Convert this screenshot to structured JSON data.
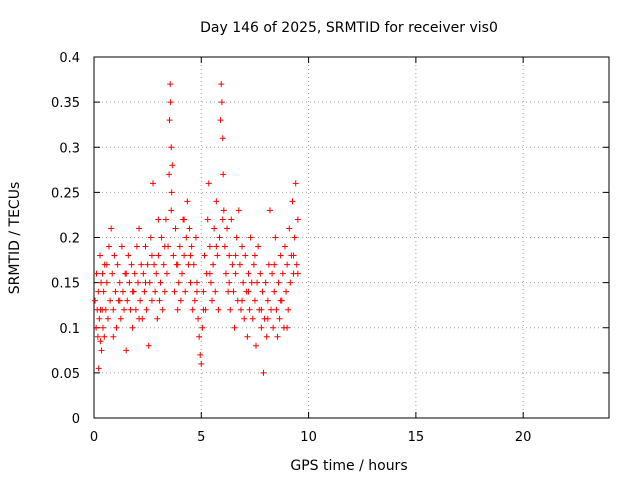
{
  "chart_data": {
    "type": "scatter",
    "title": "Day 146 of 2025, SRMTID for receiver vis0",
    "xlabel": "GPS time / hours",
    "ylabel": "SRMTID / TECUs",
    "xlim": [
      0,
      24
    ],
    "ylim": [
      0,
      0.4
    ],
    "x_ticks": [
      0,
      5,
      10,
      15,
      20
    ],
    "y_ticks": [
      0,
      0.05,
      0.1,
      0.15,
      0.2,
      0.25,
      0.3,
      0.35,
      0.4
    ],
    "x_tick_labels": [
      "0",
      "5",
      "10",
      "15",
      "20"
    ],
    "y_tick_labels": [
      "0",
      "0.05",
      "0.1",
      "0.15",
      "0.2",
      "0.25",
      "0.3",
      "0.35",
      "0.4"
    ],
    "grid": true,
    "marker": "plus",
    "series": [
      {
        "color": "#ff0000",
        "points": [
          [
            0.05,
            0.13
          ],
          [
            0.1,
            0.1
          ],
          [
            0.12,
            0.16
          ],
          [
            0.15,
            0.12
          ],
          [
            0.18,
            0.09
          ],
          [
            0.2,
            0.14
          ],
          [
            0.22,
            0.055
          ],
          [
            0.25,
            0.11
          ],
          [
            0.28,
            0.18
          ],
          [
            0.3,
            0.085
          ],
          [
            0.33,
            0.15
          ],
          [
            0.35,
            0.075
          ],
          [
            0.38,
            0.12
          ],
          [
            0.4,
            0.16
          ],
          [
            0.42,
            0.1
          ],
          [
            0.45,
            0.14
          ],
          [
            0.48,
            0.09
          ],
          [
            0.5,
            0.17
          ],
          [
            0.55,
            0.12
          ],
          [
            0.6,
            0.15
          ],
          [
            0.65,
            0.11
          ],
          [
            0.7,
            0.19
          ],
          [
            0.75,
            0.13
          ],
          [
            0.8,
            0.21
          ],
          [
            0.85,
            0.16
          ],
          [
            0.9,
            0.12
          ],
          [
            0.95,
            0.18
          ],
          [
            1.0,
            0.14
          ],
          [
            1.05,
            0.1
          ],
          [
            1.1,
            0.17
          ],
          [
            1.15,
            0.13
          ],
          [
            1.2,
            0.15
          ],
          [
            1.25,
            0.11
          ],
          [
            1.3,
            0.19
          ],
          [
            1.35,
            0.14
          ],
          [
            1.4,
            0.12
          ],
          [
            1.45,
            0.16
          ],
          [
            1.5,
            0.075
          ],
          [
            1.55,
            0.13
          ],
          [
            1.6,
            0.18
          ],
          [
            1.65,
            0.15
          ],
          [
            1.7,
            0.12
          ],
          [
            1.75,
            0.17
          ],
          [
            1.8,
            0.1
          ],
          [
            1.85,
            0.14
          ],
          [
            1.9,
            0.16
          ],
          [
            1.95,
            0.12
          ],
          [
            2.0,
            0.19
          ],
          [
            2.05,
            0.15
          ],
          [
            2.1,
            0.21
          ],
          [
            2.15,
            0.13
          ],
          [
            2.2,
            0.17
          ],
          [
            2.25,
            0.11
          ],
          [
            2.3,
            0.16
          ],
          [
            2.35,
            0.14
          ],
          [
            2.4,
            0.19
          ],
          [
            2.45,
            0.12
          ],
          [
            2.5,
            0.17
          ],
          [
            2.55,
            0.08
          ],
          [
            2.6,
            0.15
          ],
          [
            2.65,
            0.2
          ],
          [
            2.7,
            0.13
          ],
          [
            2.75,
            0.26
          ],
          [
            2.8,
            0.17
          ],
          [
            2.85,
            0.14
          ],
          [
            2.9,
            0.16
          ],
          [
            2.95,
            0.11
          ],
          [
            3.0,
            0.18
          ],
          [
            3.05,
            0.13
          ],
          [
            3.1,
            0.15
          ],
          [
            3.15,
            0.2
          ],
          [
            3.2,
            0.12
          ],
          [
            3.25,
            0.17
          ],
          [
            3.3,
            0.14
          ],
          [
            3.35,
            0.22
          ],
          [
            3.4,
            0.16
          ],
          [
            3.45,
            0.19
          ],
          [
            3.5,
            0.27
          ],
          [
            3.52,
            0.33
          ],
          [
            3.55,
            0.37
          ],
          [
            3.57,
            0.35
          ],
          [
            3.6,
            0.3
          ],
          [
            3.62,
            0.25
          ],
          [
            3.65,
            0.28
          ],
          [
            3.7,
            0.18
          ],
          [
            3.75,
            0.14
          ],
          [
            3.8,
            0.21
          ],
          [
            3.85,
            0.17
          ],
          [
            3.9,
            0.12
          ],
          [
            3.95,
            0.15
          ],
          [
            4.0,
            0.19
          ],
          [
            4.05,
            0.13
          ],
          [
            4.1,
            0.16
          ],
          [
            4.15,
            0.22
          ],
          [
            4.2,
            0.18
          ],
          [
            4.25,
            0.14
          ],
          [
            4.3,
            0.2
          ],
          [
            4.35,
            0.24
          ],
          [
            4.4,
            0.17
          ],
          [
            4.45,
            0.21
          ],
          [
            4.5,
            0.15
          ],
          [
            4.55,
            0.19
          ],
          [
            4.6,
            0.12
          ],
          [
            4.65,
            0.17
          ],
          [
            4.7,
            0.13
          ],
          [
            4.75,
            0.2
          ],
          [
            4.8,
            0.15
          ],
          [
            4.85,
            0.11
          ],
          [
            4.9,
            0.09
          ],
          [
            4.95,
            0.07
          ],
          [
            5.0,
            0.06
          ],
          [
            5.05,
            0.1
          ],
          [
            5.1,
            0.14
          ],
          [
            5.15,
            0.18
          ],
          [
            5.2,
            0.12
          ],
          [
            5.25,
            0.16
          ],
          [
            5.3,
            0.22
          ],
          [
            5.35,
            0.26
          ],
          [
            5.4,
            0.19
          ],
          [
            5.45,
            0.15
          ],
          [
            5.5,
            0.13
          ],
          [
            5.55,
            0.17
          ],
          [
            5.6,
            0.21
          ],
          [
            5.65,
            0.14
          ],
          [
            5.7,
            0.24
          ],
          [
            5.75,
            0.18
          ],
          [
            5.8,
            0.12
          ],
          [
            5.85,
            0.2
          ],
          [
            5.9,
            0.33
          ],
          [
            5.93,
            0.37
          ],
          [
            5.96,
            0.35
          ],
          [
            6.0,
            0.31
          ],
          [
            6.02,
            0.27
          ],
          [
            6.05,
            0.23
          ],
          [
            6.1,
            0.19
          ],
          [
            6.15,
            0.16
          ],
          [
            6.2,
            0.21
          ],
          [
            6.25,
            0.14
          ],
          [
            6.3,
            0.18
          ],
          [
            6.35,
            0.12
          ],
          [
            6.4,
            0.22
          ],
          [
            6.45,
            0.17
          ],
          [
            6.5,
            0.14
          ],
          [
            6.55,
            0.1
          ],
          [
            6.6,
            0.16
          ],
          [
            6.65,
            0.2
          ],
          [
            6.7,
            0.13
          ],
          [
            6.75,
            0.23
          ],
          [
            6.8,
            0.17
          ],
          [
            6.85,
            0.12
          ],
          [
            6.9,
            0.19
          ],
          [
            6.95,
            0.15
          ],
          [
            7.0,
            0.11
          ],
          [
            7.05,
            0.18
          ],
          [
            7.1,
            0.14
          ],
          [
            7.15,
            0.09
          ],
          [
            7.2,
            0.16
          ],
          [
            7.25,
            0.12
          ],
          [
            7.3,
            0.2
          ],
          [
            7.35,
            0.15
          ],
          [
            7.4,
            0.11
          ],
          [
            7.45,
            0.17
          ],
          [
            7.5,
            0.13
          ],
          [
            7.55,
            0.08
          ],
          [
            7.6,
            0.15
          ],
          [
            7.65,
            0.19
          ],
          [
            7.7,
            0.12
          ],
          [
            7.75,
            0.16
          ],
          [
            7.8,
            0.1
          ],
          [
            7.85,
            0.14
          ],
          [
            7.9,
            0.05
          ],
          [
            7.95,
            0.11
          ],
          [
            8.0,
            0.15
          ],
          [
            8.05,
            0.09
          ],
          [
            8.1,
            0.13
          ],
          [
            8.15,
            0.17
          ],
          [
            8.2,
            0.23
          ],
          [
            8.25,
            0.12
          ],
          [
            8.3,
            0.16
          ],
          [
            8.35,
            0.1
          ],
          [
            8.4,
            0.14
          ],
          [
            8.45,
            0.2
          ],
          [
            8.5,
            0.12
          ],
          [
            8.55,
            0.09
          ],
          [
            8.6,
            0.15
          ],
          [
            8.65,
            0.11
          ],
          [
            8.7,
            0.18
          ],
          [
            8.75,
            0.13
          ],
          [
            8.8,
            0.16
          ],
          [
            8.85,
            0.1
          ],
          [
            8.9,
            0.19
          ],
          [
            8.95,
            0.14
          ],
          [
            9.0,
            0.17
          ],
          [
            9.05,
            0.12
          ],
          [
            9.1,
            0.21
          ],
          [
            9.15,
            0.15
          ],
          [
            9.2,
            0.18
          ],
          [
            9.25,
            0.24
          ],
          [
            9.3,
            0.16
          ],
          [
            9.35,
            0.2
          ],
          [
            9.4,
            0.26
          ],
          [
            9.45,
            0.17
          ],
          [
            9.5,
            0.22
          ],
          [
            0.3,
            0.12
          ],
          [
            0.6,
            0.17
          ],
          [
            0.9,
            0.09
          ],
          [
            1.2,
            0.13
          ],
          [
            1.5,
            0.16
          ],
          [
            1.8,
            0.14
          ],
          [
            2.1,
            0.11
          ],
          [
            2.4,
            0.15
          ],
          [
            2.7,
            0.18
          ],
          [
            3.0,
            0.22
          ],
          [
            3.3,
            0.19
          ],
          [
            3.6,
            0.23
          ],
          [
            3.9,
            0.17
          ],
          [
            4.2,
            0.22
          ],
          [
            4.5,
            0.18
          ],
          [
            4.8,
            0.14
          ],
          [
            5.1,
            0.12
          ],
          [
            5.4,
            0.16
          ],
          [
            5.7,
            0.19
          ],
          [
            6.0,
            0.22
          ],
          [
            6.3,
            0.15
          ],
          [
            6.6,
            0.18
          ],
          [
            6.9,
            0.13
          ],
          [
            7.2,
            0.14
          ],
          [
            7.5,
            0.18
          ],
          [
            7.8,
            0.12
          ],
          [
            8.1,
            0.11
          ],
          [
            8.4,
            0.17
          ],
          [
            8.7,
            0.13
          ],
          [
            9.0,
            0.1
          ],
          [
            9.3,
            0.18
          ],
          [
            9.5,
            0.16
          ]
        ]
      }
    ]
  }
}
